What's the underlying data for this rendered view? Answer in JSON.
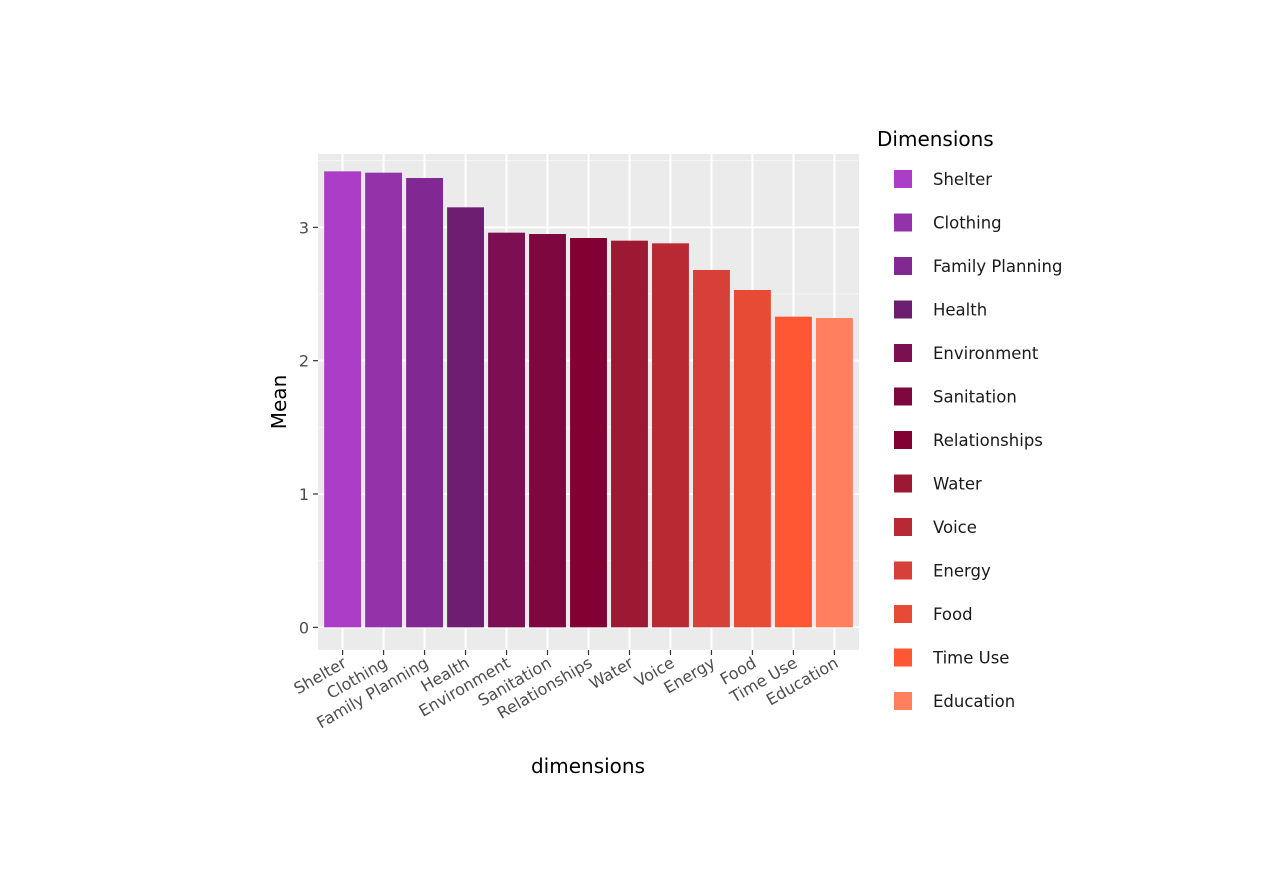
{
  "chart_data": {
    "type": "bar",
    "xlabel": "dimensions",
    "ylabel": "Mean",
    "ylim": [
      -0.17,
      3.55
    ],
    "yticks": [
      0,
      1,
      2,
      3
    ],
    "grid": true,
    "legend": {
      "title": "Dimensions",
      "placement": "right"
    },
    "categories": [
      "Shelter",
      "Clothing",
      "Family Planning",
      "Health",
      "Environment",
      "Sanitation",
      "Relationships",
      "Water",
      "Voice",
      "Energy",
      "Food",
      "Time Use",
      "Education"
    ],
    "values": [
      3.42,
      3.41,
      3.37,
      3.15,
      2.96,
      2.95,
      2.92,
      2.9,
      2.88,
      2.68,
      2.53,
      2.33,
      2.32
    ],
    "colors": [
      "#ac3dc6",
      "#9432a9",
      "#822893",
      "#6d1e70",
      "#7b0f52",
      "#7f0740",
      "#820032",
      "#9d1832",
      "#b92934",
      "#d73f39",
      "#e84b35",
      "#ff5733",
      "#ff7f5e"
    ]
  }
}
